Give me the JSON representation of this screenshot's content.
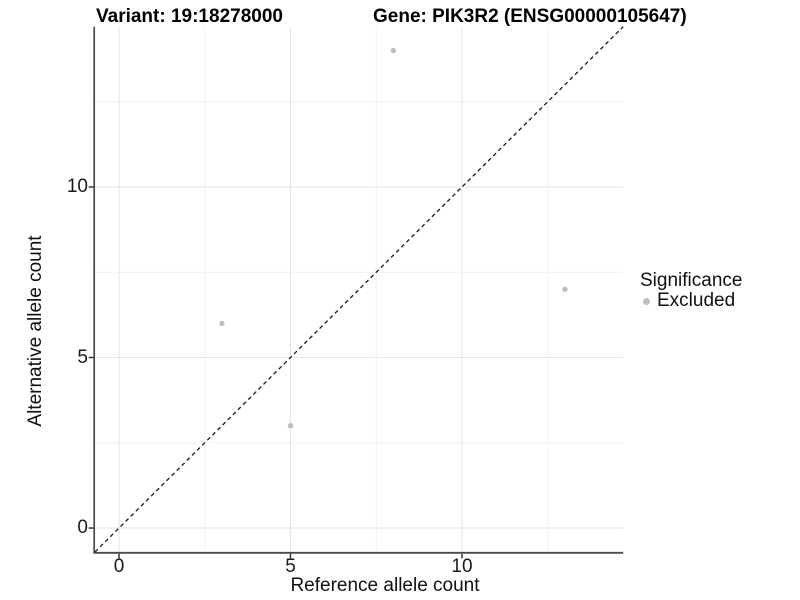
{
  "titles": {
    "variant": "Variant: 19:18278000",
    "gene": "Gene: PIK3R2 (ENSG00000105647)"
  },
  "chart_data": {
    "type": "scatter",
    "title_left": "Variant: 19:18278000",
    "title_right": "Gene: PIK3R2 (ENSG00000105647)",
    "xlabel": "Reference allele count",
    "ylabel": "Alternative allele count",
    "xlim": [
      -0.7,
      14.7
    ],
    "ylim": [
      -0.7,
      14.7
    ],
    "x_major_ticks": [
      0,
      5,
      10
    ],
    "y_major_ticks": [
      0,
      5,
      10
    ],
    "x_minor_ticks": [
      2.5,
      7.5,
      12.5
    ],
    "y_minor_ticks": [
      2.5,
      7.5,
      12.5
    ],
    "grid": "on",
    "series": [
      {
        "name": "Excluded",
        "points": [
          {
            "x": 8,
            "y": 14
          },
          {
            "x": 3,
            "y": 6
          },
          {
            "x": 5,
            "y": 3
          },
          {
            "x": 13,
            "y": 7
          }
        ]
      }
    ],
    "identity_line": {
      "from": [
        -0.7,
        -0.7
      ],
      "to": [
        14.7,
        14.7
      ],
      "style": "dashed"
    },
    "legend": {
      "title": "Significance",
      "position": "right",
      "entries": [
        {
          "label": "Excluded",
          "color": "#bebebe"
        }
      ]
    },
    "colors": {
      "point": "#bebebe",
      "grid_major": "#e6e6e6",
      "grid_minor": "#f1f1f1",
      "axis_line": "#4a4a4a",
      "tick_mark": "#333333",
      "identity_line": "#1a1a1a",
      "text": "#1a1a1a"
    }
  }
}
